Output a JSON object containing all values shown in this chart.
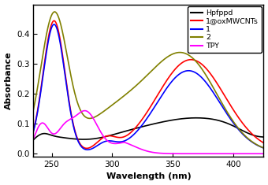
{
  "x_min": 235,
  "x_max": 425,
  "y_min": -0.01,
  "y_max": 0.5,
  "xlabel": "Wavelength (nm)",
  "ylabel": "Absorbance",
  "legend_labels": [
    "Hpfppd",
    "1@oxMWCNTs",
    "1",
    "2",
    "TPY"
  ],
  "line_colors": [
    "black",
    "red",
    "blue",
    "#808000",
    "magenta"
  ],
  "background_color": "#ffffff",
  "yticks": [
    0.0,
    0.1,
    0.2,
    0.3,
    0.4
  ],
  "xticks": [
    250,
    300,
    350,
    400
  ],
  "linewidth": 1.2
}
